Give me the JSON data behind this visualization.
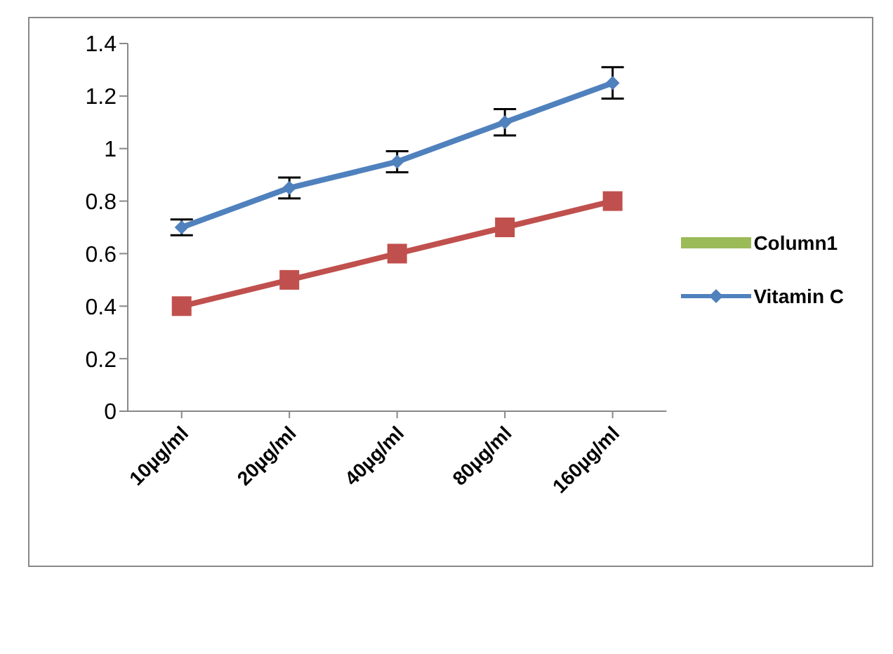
{
  "chart_data": {
    "type": "line",
    "categories": [
      "10µg/ml",
      "20µg/ml",
      "40µg/ml",
      "80µg/ml",
      "160µg/ml"
    ],
    "series": [
      {
        "name": "Column1",
        "type": "bar",
        "color": "#9bbb59",
        "values": [
          null,
          null,
          null,
          null,
          null
        ]
      },
      {
        "name": "Vitamin C",
        "color": "#4f81bd",
        "marker": "diamond",
        "values": [
          0.7,
          0.85,
          0.95,
          1.1,
          1.25
        ],
        "errors": [
          0.03,
          0.04,
          0.04,
          0.05,
          0.06
        ]
      },
      {
        "color": "#c0504d",
        "marker": "square",
        "values": [
          0.4,
          0.5,
          0.6,
          0.7,
          0.8
        ]
      }
    ],
    "ylim": [
      0,
      1.4
    ],
    "yticks": [
      0,
      0.2,
      0.4,
      0.6,
      0.8,
      1,
      1.2,
      1.4
    ],
    "grid": false,
    "legend": "right"
  }
}
